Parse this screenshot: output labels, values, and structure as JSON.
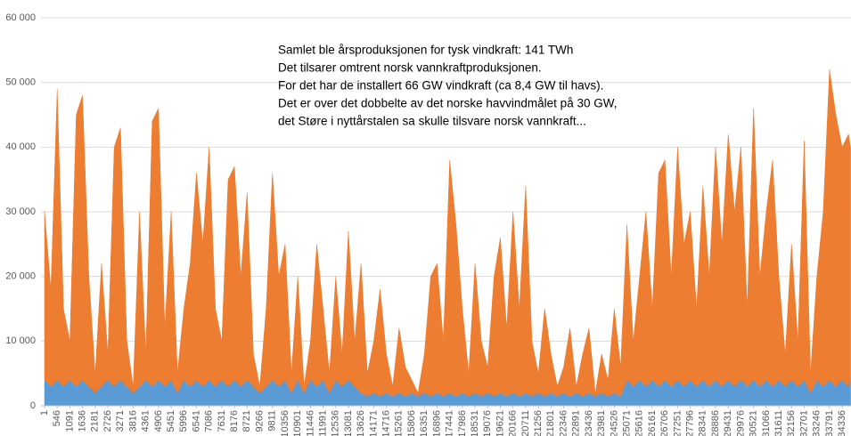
{
  "chart_data": {
    "type": "stacked_area",
    "annotation": [
      "Samlet ble årsproduksjonen for tysk vindkraft: 141 TWh",
      "Det tilsarer omtrent norsk vannkraftproduksjonen.",
      "For det har de installert 66 GW vindkraft (ca 8,4 GW til havs).",
      "Det er over det dobbelte av det norske havvindmålet på 30 GW,",
      "det Støre i nyttårstalen sa skulle tilsvare norsk vannkraft..."
    ],
    "x": [
      1,
      274,
      546,
      819,
      1091,
      1364,
      1636,
      1909,
      2181,
      2454,
      2726,
      2999,
      3271,
      3544,
      3816,
      4089,
      4361,
      4634,
      4906,
      5179,
      5451,
      5724,
      5996,
      6269,
      6541,
      6814,
      7086,
      7359,
      7631,
      7904,
      8176,
      8449,
      8721,
      8994,
      9266,
      9539,
      9811,
      10084,
      10356,
      10629,
      10901,
      11174,
      11446,
      11719,
      11991,
      12264,
      12536,
      12809,
      13081,
      13354,
      13626,
      13899,
      14171,
      14444,
      14716,
      14989,
      15261,
      15534,
      15806,
      16079,
      16351,
      16624,
      16896,
      17169,
      17441,
      17714,
      17986,
      18259,
      18531,
      18804,
      19076,
      19349,
      19621,
      19894,
      20166,
      20439,
      20711,
      20984,
      21256,
      21529,
      21801,
      22074,
      22346,
      22619,
      22891,
      23164,
      23436,
      23709,
      23981,
      24254,
      24526,
      24799,
      25071,
      25344,
      25616,
      25889,
      26161,
      26434,
      26706,
      26979,
      27251,
      27524,
      27796,
      28069,
      28341,
      28614,
      28886,
      29159,
      29431,
      29704,
      29976,
      30249,
      30521,
      30794,
      31066,
      31339,
      31611,
      31884,
      32156,
      32429,
      32701,
      32974,
      33246,
      33519,
      33791,
      34064,
      34336,
      34609,
      34700
    ],
    "series": [
      {
        "color": "#5b9bd5",
        "values": [
          4000,
          3000,
          4000,
          3000,
          4000,
          3000,
          4000,
          3000,
          2000,
          3000,
          4000,
          3000,
          4000,
          3000,
          2000,
          3000,
          4000,
          3000,
          4000,
          3000,
          4000,
          2000,
          4000,
          3000,
          4000,
          3000,
          4000,
          3000,
          4000,
          3000,
          4000,
          3000,
          4000,
          3000,
          2000,
          3000,
          4000,
          3000,
          4000,
          2000,
          4000,
          2000,
          4000,
          3000,
          4000,
          2000,
          4000,
          3000,
          4000,
          3000,
          2000,
          1500,
          2000,
          1500,
          2000,
          1500,
          2000,
          1500,
          2000,
          1500,
          2000,
          1500,
          2000,
          1500,
          2000,
          1500,
          2000,
          1500,
          2000,
          1500,
          2000,
          1500,
          2000,
          1500,
          2000,
          1500,
          2000,
          1500,
          2000,
          1500,
          2000,
          1500,
          2000,
          1500,
          2000,
          1500,
          2000,
          1500,
          2000,
          1500,
          2000,
          1500,
          4000,
          3000,
          4000,
          3000,
          4000,
          3000,
          4000,
          3000,
          4000,
          3000,
          4000,
          3000,
          4000,
          3000,
          4000,
          3000,
          4000,
          3000,
          4000,
          3000,
          4000,
          3000,
          4000,
          3000,
          4000,
          3000,
          4000,
          3000,
          4000,
          2000,
          4000,
          3000,
          4000,
          3000,
          4000,
          3000,
          4000
        ]
      },
      {
        "color": "#ed7d31",
        "values": [
          26000,
          15000,
          45000,
          12000,
          6000,
          42000,
          44000,
          17000,
          3000,
          19000,
          4000,
          37000,
          39000,
          7000,
          1000,
          27000,
          4000,
          41000,
          42000,
          9000,
          26000,
          3000,
          11000,
          19000,
          32000,
          22000,
          36000,
          12000,
          6000,
          32000,
          33000,
          17000,
          29000,
          5000,
          1000,
          12000,
          32000,
          17000,
          21000,
          3000,
          16000,
          1000,
          6000,
          22000,
          11000,
          3000,
          16000,
          5000,
          23000,
          7000,
          20000,
          3500,
          8000,
          16500,
          6000,
          1500,
          10000,
          4500,
          2000,
          500,
          6000,
          18500,
          20000,
          8500,
          36000,
          26500,
          13000,
          3500,
          20000,
          8500,
          4000,
          18500,
          24000,
          10500,
          28000,
          13500,
          32000,
          8500,
          3000,
          13500,
          6000,
          1500,
          4000,
          10500,
          1000,
          6500,
          10000,
          500,
          6000,
          2500,
          13000,
          4500,
          24000,
          7000,
          16000,
          27000,
          11000,
          33000,
          34000,
          17000,
          36000,
          22000,
          26000,
          12000,
          30000,
          17000,
          36000,
          22000,
          38000,
          27000,
          36000,
          12000,
          42000,
          17000,
          26000,
          35000,
          16000,
          5000,
          21000,
          7000,
          37000,
          3000,
          16000,
          27000,
          48000,
          42000,
          36000,
          39000,
          36000
        ]
      }
    ],
    "xlim": [
      1,
      34700
    ],
    "xticks": [
      1,
      546,
      1091,
      1636,
      2181,
      2726,
      3271,
      3816,
      4361,
      4906,
      5451,
      5996,
      6541,
      7086,
      7631,
      8176,
      8721,
      9266,
      9811,
      10356,
      10901,
      11446,
      11991,
      12536,
      13081,
      13626,
      14171,
      14716,
      15261,
      15806,
      16351,
      16896,
      17441,
      17986,
      18531,
      19076,
      19621,
      20166,
      20711,
      21256,
      21801,
      22346,
      22891,
      23436,
      23981,
      24526,
      25071,
      25616,
      26161,
      26706,
      27251,
      27796,
      28341,
      28886,
      29431,
      29976,
      30521,
      31066,
      31611,
      32156,
      32701,
      33246,
      33791,
      34336
    ],
    "ylim": [
      0,
      60000
    ],
    "yticks": [
      {
        "value": 0,
        "label": "0"
      },
      {
        "value": 10000,
        "label": "10 000"
      },
      {
        "value": 20000,
        "label": "20 000"
      },
      {
        "value": 30000,
        "label": "30 000"
      },
      {
        "value": 40000,
        "label": "40 000"
      },
      {
        "value": 50000,
        "label": "50 000"
      },
      {
        "value": 60000,
        "label": "60 000"
      }
    ],
    "grid": true
  }
}
